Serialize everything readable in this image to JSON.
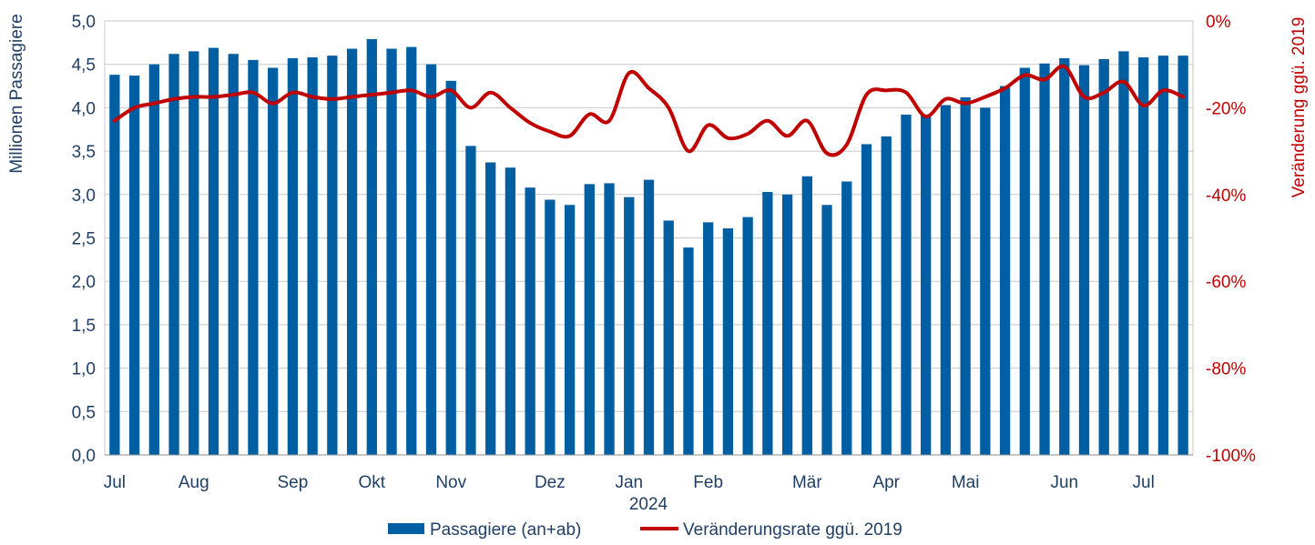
{
  "chart_data": {
    "type": "bar",
    "colors": {
      "bars": "#005ea3",
      "line": "#c00000",
      "grid": "#c8c8c8",
      "text_left": "#1f3f66",
      "text_right": "#c00000"
    },
    "grid": true,
    "legend_position": "bottom",
    "x_labels": [
      "Jul",
      "Aug",
      "Sep",
      "Okt",
      "Nov",
      "Dez",
      "Jan",
      "Feb",
      "Mär",
      "Apr",
      "Mai",
      "Jun",
      "Jul"
    ],
    "x_label_weeks": [
      1,
      5,
      10,
      14,
      18,
      23,
      27,
      31,
      36,
      40,
      44,
      49,
      53
    ],
    "x_sublabel": "2024",
    "y_left": {
      "label": "Millionen Passagiere",
      "range": [
        0,
        5
      ],
      "ticks": [
        "0,0",
        "0,5",
        "1,0",
        "1,5",
        "2,0",
        "2,5",
        "3,0",
        "3,5",
        "4,0",
        "4,5",
        "5,0"
      ]
    },
    "y_right": {
      "label": "Veränderung ggü. 2019",
      "range": [
        -100,
        0
      ],
      "ticks": [
        "-100%",
        "-80%",
        "-60%",
        "-40%",
        "-20%",
        "0%"
      ]
    },
    "series": [
      {
        "name": "Passagiere (an+ab)",
        "axis": "left",
        "kind": "bar",
        "values": [
          4.38,
          4.37,
          4.5,
          4.62,
          4.65,
          4.69,
          4.62,
          4.55,
          4.46,
          4.57,
          4.58,
          4.6,
          4.68,
          4.79,
          4.68,
          4.7,
          4.5,
          4.31,
          3.56,
          3.37,
          3.31,
          3.08,
          2.94,
          2.88,
          3.12,
          3.13,
          2.97,
          3.17,
          2.7,
          2.39,
          2.68,
          2.61,
          2.74,
          3.03,
          3.0,
          3.21,
          2.88,
          3.15,
          3.58,
          3.67,
          3.92,
          3.92,
          4.03,
          4.12,
          4.0,
          4.25,
          4.46,
          4.51,
          4.57,
          4.49,
          4.56,
          4.65,
          4.58,
          4.6,
          4.6
        ]
      },
      {
        "name": "Veränderungsrate ggü. 2019",
        "axis": "right",
        "kind": "line",
        "values": [
          -23,
          -20,
          -19,
          -18,
          -17.5,
          -17.5,
          -17,
          -16.5,
          -19,
          -16.5,
          -17.5,
          -18,
          -17.5,
          -17,
          -16.5,
          -16,
          -17.5,
          -16,
          -20,
          -16.5,
          -20,
          -23.5,
          -25.5,
          -26.5,
          -21.5,
          -23,
          -12,
          -15.5,
          -20,
          -30,
          -24,
          -27,
          -26,
          -23,
          -26.5,
          -23,
          -30.5,
          -28.5,
          -17,
          -16,
          -16.5,
          -22,
          -18,
          -19,
          -17.5,
          -15.5,
          -12.5,
          -13.5,
          -10.5,
          -17.5,
          -16.5,
          -14,
          -19.5,
          -16,
          -17.5
        ]
      }
    ]
  }
}
